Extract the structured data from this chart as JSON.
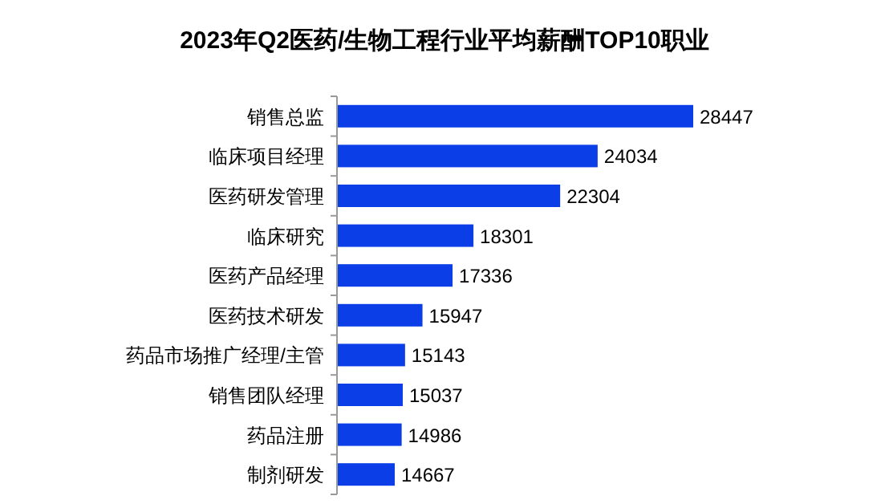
{
  "chart_data": {
    "type": "bar",
    "orientation": "horizontal",
    "title": "2023年Q2医药/生物工程行业平均薪酬TOP10职业",
    "categories": [
      "销售总监",
      "临床项目经理",
      "医药研发管理",
      "临床研究",
      "医药产品经理",
      "医药技术研发",
      "药品市场推广经理/主管",
      "销售团队经理",
      "药品注册",
      "制剂研发"
    ],
    "values": [
      28447,
      24034,
      22304,
      18301,
      17336,
      15947,
      15143,
      15037,
      14986,
      14667
    ],
    "color": "#0b3ee6",
    "xlim": [
      12000,
      28447
    ],
    "data_labels": true,
    "tick_labels": "y"
  }
}
